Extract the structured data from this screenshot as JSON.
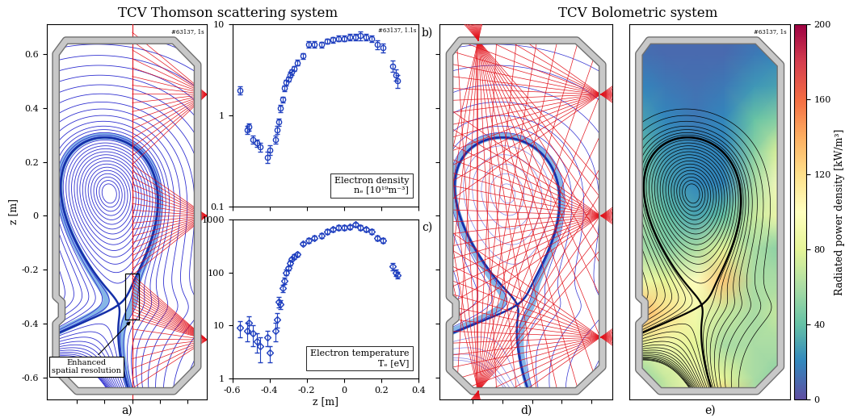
{
  "figure_titles": [
    "TCV Thomson scattering system",
    "TCV Bolometric system"
  ],
  "chart_data": [
    {
      "type": "thomson",
      "panel": "a)",
      "annotation": "#63137, 1s",
      "ylabel": "z [m]",
      "callout": "Enhanced\nspatial resolution",
      "xlim": [
        0.59,
        1.17
      ],
      "ylim": [
        -0.68,
        0.71
      ],
      "xticks": [
        0.7,
        0.8,
        0.9,
        1.0,
        1.1
      ],
      "yticks": [
        -0.6,
        -0.4,
        -0.2,
        0,
        0.2,
        0.4,
        0.6
      ],
      "tick_labels": "y"
    },
    {
      "type": "scatter",
      "panel": "b)",
      "annotation": "#63137, 1.1s",
      "label": "Electron density\nnₑ [10¹⁹m⁻³]",
      "log": "y",
      "color": "#1f3fbf",
      "marker": "o",
      "x": [
        -0.56,
        -0.52,
        -0.51,
        -0.49,
        -0.47,
        -0.45,
        -0.41,
        -0.4,
        -0.37,
        -0.36,
        -0.35,
        -0.34,
        -0.33,
        -0.32,
        -0.31,
        -0.3,
        -0.29,
        -0.28,
        -0.27,
        -0.25,
        -0.22,
        -0.19,
        -0.16,
        -0.12,
        -0.09,
        -0.06,
        -0.03,
        0.0,
        0.03,
        0.06,
        0.09,
        0.12,
        0.15,
        0.18,
        0.21,
        0.26,
        0.28,
        0.29
      ],
      "values": [
        1.9,
        0.7,
        0.75,
        0.55,
        0.5,
        0.45,
        0.35,
        0.42,
        0.55,
        0.7,
        0.85,
        1.2,
        1.5,
        2.0,
        2.3,
        2.5,
        2.8,
        3.0,
        3.3,
        3.8,
        4.5,
        6.0,
        6.0,
        6.0,
        6.5,
        6.8,
        7.0,
        7.0,
        7.2,
        7.2,
        7.5,
        7.2,
        7.0,
        6.0,
        5.5,
        3.5,
        2.8,
        2.4
      ],
      "errors": [
        0.2,
        0.07,
        0.07,
        0.06,
        0.05,
        0.05,
        0.05,
        0.05,
        0.06,
        0.07,
        0.08,
        0.1,
        0.12,
        0.15,
        0.15,
        0.15,
        0.2,
        0.2,
        0.2,
        0.25,
        0.3,
        0.5,
        0.5,
        0.4,
        0.4,
        0.5,
        0.5,
        0.5,
        0.6,
        0.6,
        0.8,
        0.6,
        0.6,
        0.7,
        0.6,
        0.5,
        0.4,
        0.4
      ],
      "xlim": [
        -0.6,
        0.4
      ],
      "ylim": [
        0.1,
        10
      ],
      "xticks": [
        -0.6,
        -0.4,
        -0.2,
        0,
        0.2,
        0.4
      ],
      "yticks": [
        0.1,
        1,
        10
      ],
      "tick_labels": "y"
    },
    {
      "type": "scatter",
      "panel": "c)",
      "xlabel": "z [m]",
      "label": "Electron temperature\nTₑ [eV]",
      "log": "y",
      "color": "#1f3fbf",
      "marker": "D",
      "x": [
        -0.56,
        -0.52,
        -0.51,
        -0.49,
        -0.47,
        -0.45,
        -0.41,
        -0.4,
        -0.37,
        -0.36,
        -0.35,
        -0.34,
        -0.33,
        -0.32,
        -0.31,
        -0.3,
        -0.29,
        -0.28,
        -0.27,
        -0.25,
        -0.22,
        -0.19,
        -0.16,
        -0.12,
        -0.09,
        -0.06,
        -0.03,
        0.0,
        0.03,
        0.06,
        0.09,
        0.12,
        0.15,
        0.18,
        0.21,
        0.26,
        0.28,
        0.29
      ],
      "values": [
        9,
        8,
        11,
        7,
        5,
        4,
        6,
        3,
        8,
        13,
        28,
        25,
        50,
        70,
        100,
        120,
        150,
        180,
        200,
        220,
        350,
        400,
        450,
        500,
        600,
        650,
        700,
        700,
        720,
        800,
        700,
        650,
        600,
        450,
        400,
        130,
        100,
        90
      ],
      "errors": [
        3,
        3,
        4,
        3,
        2,
        2,
        2,
        1,
        3,
        4,
        6,
        5,
        8,
        10,
        12,
        12,
        15,
        15,
        20,
        20,
        30,
        40,
        40,
        50,
        60,
        60,
        70,
        70,
        70,
        80,
        70,
        60,
        60,
        50,
        40,
        20,
        15,
        12
      ],
      "xlim": [
        -0.6,
        0.4
      ],
      "ylim": [
        1,
        1000
      ],
      "xticks": [
        -0.6,
        -0.4,
        -0.2,
        0,
        0.2,
        0.4
      ],
      "yticks": [
        1,
        10,
        100,
        1000
      ]
    },
    {
      "type": "bolometer",
      "panel": "d)",
      "xlim": [
        0.59,
        1.17
      ],
      "ylim": [
        -0.68,
        0.71
      ],
      "xticks": [
        0.7,
        0.8,
        0.9,
        1.0,
        1.1
      ],
      "yticks": [
        -0.6,
        -0.4,
        -0.2,
        0,
        0.2,
        0.4,
        0.6
      ],
      "tick_labels": false
    },
    {
      "type": "heatmap",
      "panel": "e)",
      "annotation": "#63137, 1s",
      "xlim": [
        0.59,
        1.17
      ],
      "ylim": [
        -0.68,
        0.71
      ],
      "tick_labels": false,
      "x": [
        0.62,
        0.72,
        0.83,
        0.93,
        1.04,
        1.14
      ],
      "y": [
        -0.72,
        -0.6,
        -0.48,
        -0.36,
        -0.24,
        -0.12,
        0.0,
        0.12,
        0.24,
        0.36,
        0.48,
        0.6,
        0.72
      ],
      "values": [
        [
          40,
          60,
          110,
          140,
          60,
          40
        ],
        [
          50,
          70,
          90,
          80,
          60,
          50
        ],
        [
          80,
          90,
          80,
          60,
          60,
          60
        ],
        [
          140,
          120,
          90,
          70,
          60,
          70
        ],
        [
          90,
          80,
          100,
          130,
          60,
          60
        ],
        [
          60,
          50,
          60,
          80,
          60,
          50
        ],
        [
          60,
          40,
          30,
          40,
          70,
          90
        ],
        [
          50,
          30,
          20,
          20,
          60,
          100
        ],
        [
          40,
          25,
          20,
          20,
          50,
          80
        ],
        [
          30,
          20,
          15,
          20,
          40,
          50
        ],
        [
          20,
          15,
          12,
          15,
          25,
          30
        ],
        [
          12,
          10,
          10,
          10,
          15,
          20
        ],
        [
          10,
          10,
          10,
          10,
          10,
          15
        ]
      ],
      "colorbar": {
        "label": "Radiated power density [kW/m³]",
        "lim": [
          0,
          200
        ],
        "ticks": [
          0,
          40,
          80,
          120,
          160,
          200
        ]
      }
    }
  ]
}
